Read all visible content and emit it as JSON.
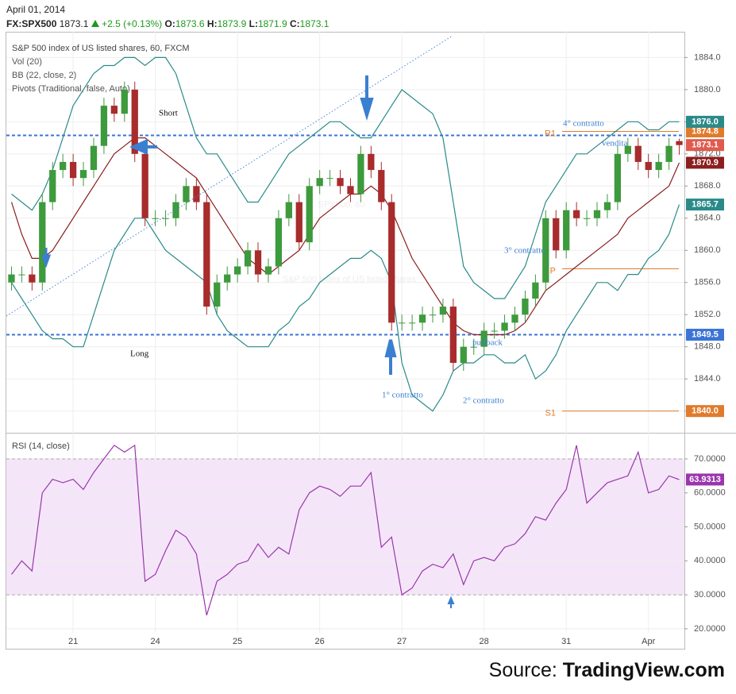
{
  "header": {
    "date": "April 01, 2014",
    "symbol": "FX:SPX500",
    "change": "+2.5 (+0.13%)",
    "ohlc_labels": [
      "O:",
      "H:",
      "L:",
      "C:"
    ]
  },
  "source": {
    "prefix": "Source:",
    "site": "TradingView.com"
  },
  "chart_data": [
    {
      "type": "candlestick",
      "title": "S&P 500 index of US listed shares, 60, FXCM",
      "indicators": [
        "Vol (20)",
        "BB (22, close, 2)",
        "Pivots (Traditional, false, Auto)"
      ],
      "watermark": "SPX500, 60",
      "watermark_subtitle": "S&P 500 index of US listed shares",
      "categories": [
        null,
        null,
        null,
        null,
        null,
        null,
        "21",
        null,
        null,
        null,
        null,
        null,
        null,
        null,
        "24",
        null,
        null,
        null,
        null,
        null,
        null,
        null,
        "25",
        null,
        null,
        null,
        null,
        null,
        null,
        null,
        "26",
        null,
        null,
        null,
        null,
        null,
        null,
        null,
        "27",
        null,
        null,
        null,
        null,
        null,
        null,
        null,
        "28",
        null,
        null,
        null,
        null,
        null,
        null,
        null,
        "31",
        null,
        null,
        null,
        null,
        null,
        null,
        null,
        "Apr",
        null,
        null,
        null
      ],
      "open": [
        1856,
        1857,
        1857,
        1856,
        1866,
        1870,
        1871,
        1869,
        1870,
        1873,
        1878,
        1877,
        1880,
        1872,
        1864,
        1864,
        1864,
        1866,
        1868,
        1866,
        1853,
        1856,
        1857,
        1858,
        1860,
        1857,
        1858,
        1864,
        1866,
        1861,
        1868,
        1869,
        1869,
        1868,
        1867,
        1872,
        1870,
        1866,
        1851,
        1851,
        1851,
        1852,
        1852,
        1853,
        1846,
        1848,
        1848,
        1850,
        1850,
        1851,
        1852,
        1854,
        1856,
        1864,
        1860,
        1865,
        1864,
        1864,
        1865,
        1866,
        1872,
        1873,
        1871,
        1870,
        1871,
        1873.6
      ],
      "high": [
        1858,
        1858,
        1858,
        1867,
        1871,
        1872,
        1872,
        1871,
        1874,
        1879,
        1879,
        1881,
        1881,
        1873,
        1865,
        1865,
        1867,
        1869,
        1869,
        1867,
        1857,
        1858,
        1859,
        1861,
        1861,
        1859,
        1865,
        1867,
        1867,
        1869,
        1870,
        1870,
        1870,
        1869,
        1873,
        1873,
        1871,
        1867,
        1852,
        1852,
        1853,
        1853,
        1854,
        1854,
        1849,
        1849,
        1851,
        1851,
        1852,
        1853,
        1855,
        1857,
        1865,
        1865,
        1866,
        1866,
        1865,
        1866,
        1867,
        1873,
        1874,
        1874,
        1872,
        1872,
        1874,
        1873.9
      ],
      "low": [
        1855,
        1856,
        1855,
        1855,
        1865,
        1869,
        1868,
        1868,
        1869,
        1872,
        1876,
        1876,
        1871,
        1863,
        1863,
        1863,
        1863,
        1865,
        1865,
        1852,
        1852,
        1855,
        1856,
        1857,
        1856,
        1856,
        1857,
        1863,
        1860,
        1860,
        1867,
        1868,
        1867,
        1866,
        1866,
        1869,
        1865,
        1850,
        1850,
        1850,
        1850,
        1851,
        1851,
        1845,
        1845,
        1847,
        1847,
        1849,
        1849,
        1850,
        1851,
        1853,
        1855,
        1859,
        1859,
        1863,
        1863,
        1863,
        1864,
        1865,
        1871,
        1870,
        1869,
        1869,
        1870,
        1871.9
      ],
      "close": [
        1857,
        1857,
        1856,
        1866,
        1870,
        1871,
        1869,
        1870,
        1873,
        1878,
        1877,
        1880,
        1872,
        1864,
        1864,
        1864,
        1866,
        1868,
        1866,
        1853,
        1856,
        1857,
        1858,
        1860,
        1857,
        1858,
        1864,
        1866,
        1861,
        1868,
        1869,
        1869,
        1868,
        1867,
        1872,
        1870,
        1866,
        1851,
        1851,
        1851,
        1852,
        1852,
        1853,
        1846,
        1848,
        1848,
        1850,
        1850,
        1851,
        1852,
        1854,
        1856,
        1864,
        1860,
        1865,
        1864,
        1864,
        1865,
        1866,
        1872,
        1873,
        1871,
        1870,
        1871,
        1873,
        1873.1
      ],
      "up_color": "#3d9a3d",
      "down_color": "#a82c2c",
      "last_color": "#e05a4e",
      "bands": [
        {
          "color": "#2a8a8a",
          "values": [
            1867,
            1866,
            1865,
            1867,
            1870,
            1874,
            1878,
            1880,
            1882,
            1883,
            1883,
            1884,
            1884,
            1883,
            1884,
            1884,
            1882,
            1878,
            1874,
            1872,
            1872,
            1870,
            1868,
            1866,
            1866,
            1868,
            1870,
            1872,
            1873,
            1874,
            1875,
            1876,
            1876,
            1875,
            1874,
            1874,
            1876,
            1878,
            1880,
            1879,
            1878,
            1877,
            1874,
            1866,
            1858,
            1856,
            1855,
            1854,
            1854,
            1856,
            1858,
            1862,
            1866,
            1868,
            1870,
            1872,
            1872,
            1873,
            1874,
            1875,
            1876,
            1876,
            1875,
            1875,
            1876,
            1876
          ],
          "label": "1876.0"
        },
        {
          "color": "#8b1e1e",
          "values": [
            1866,
            1862,
            1859,
            1859,
            1860,
            1862,
            1864,
            1866,
            1868,
            1870,
            1872,
            1873,
            1874,
            1874,
            1873,
            1872,
            1871,
            1870,
            1869,
            1867,
            1865,
            1863,
            1861,
            1859,
            1858,
            1857,
            1858,
            1859,
            1860,
            1862,
            1864,
            1865,
            1866,
            1867,
            1867,
            1868,
            1867,
            1865,
            1862,
            1859,
            1857,
            1855,
            1853,
            1851,
            1850,
            1849.5,
            1849.5,
            1849.5,
            1849.5,
            1850,
            1851,
            1853,
            1855,
            1856,
            1857,
            1858,
            1859,
            1860,
            1861,
            1862,
            1864,
            1865,
            1866,
            1867,
            1868,
            1870.9
          ],
          "label": "1870.9"
        },
        {
          "color": "#2a8a8a",
          "values": [
            1856,
            1854,
            1852,
            1850,
            1849,
            1849,
            1848,
            1848,
            1852,
            1856,
            1860,
            1862,
            1864,
            1864,
            1862,
            1860,
            1859,
            1858,
            1857,
            1856,
            1852,
            1850,
            1849,
            1848,
            1848,
            1848,
            1850,
            1851,
            1853,
            1854,
            1856,
            1857,
            1858,
            1859,
            1859,
            1860,
            1859,
            1856,
            1846,
            1842,
            1841,
            1840,
            1842,
            1845,
            1846,
            1846,
            1847,
            1847,
            1846,
            1846,
            1847,
            1844,
            1845,
            1847,
            1850,
            1852,
            1854,
            1856,
            1856,
            1855,
            1857,
            1857,
            1859,
            1860,
            1862,
            1865.7
          ],
          "label": "1865.7"
        }
      ],
      "levels": [
        {
          "value": 1874.3
        },
        {
          "value": 1849.5,
          "label": "1849.5"
        }
      ],
      "level_color": "#3b74d6",
      "pivots": [
        {
          "name": "R1",
          "value": 1874.8,
          "label": "1874.8"
        },
        {
          "name": "P",
          "value": 1857.7
        },
        {
          "name": "S1",
          "value": 1840,
          "label": "1840.0"
        }
      ],
      "pivot_color": "#e07b2b",
      "annotations": [
        "Short",
        "Long",
        "1° contratto",
        "2° contratto",
        "3° contratto",
        "4° contratto",
        "vendita",
        "pullback"
      ],
      "ylim": [
        1837.3,
        1887.2
      ],
      "yticks": [
        {
          "value": 1840,
          "label": "1840.0"
        },
        {
          "value": 1844,
          "label": "1844.0"
        },
        {
          "value": 1848,
          "label": "1848.0"
        },
        {
          "value": 1852,
          "label": "1852.0"
        },
        {
          "value": 1856,
          "label": "1856.0"
        },
        {
          "value": 1860,
          "label": "1860.0"
        },
        {
          "value": 1864,
          "label": "1864.0"
        },
        {
          "value": 1868,
          "label": "1868.0"
        },
        {
          "value": 1872,
          "label": "1872.0"
        },
        {
          "value": 1876,
          "label": "1876.0"
        },
        {
          "value": 1880,
          "label": "1880.0"
        },
        {
          "value": 1884,
          "label": "1884.0"
        }
      ],
      "grid": true
    },
    {
      "type": "line",
      "title": "RSI (14, close)",
      "color": "#9b35ad",
      "values": [
        36,
        40,
        37,
        60,
        64,
        63,
        64,
        61,
        66,
        70,
        74,
        72,
        74,
        34,
        36,
        43,
        49,
        47,
        42,
        24,
        34,
        36,
        39,
        40,
        45,
        41,
        44,
        42,
        55,
        60,
        62,
        61,
        59,
        62,
        62,
        66,
        44,
        47,
        30,
        32,
        37,
        39,
        38,
        42,
        33,
        40,
        41,
        40,
        44,
        45,
        48,
        53,
        52,
        57,
        61,
        74,
        57,
        60,
        63,
        64,
        65,
        72,
        60,
        61,
        65,
        63.9313
      ],
      "band": [
        30,
        70
      ],
      "ylim": [
        18.8,
        77.7
      ],
      "yticks": [
        {
          "value": 20,
          "label": "20.0000"
        },
        {
          "value": 30,
          "label": "30.0000"
        },
        {
          "value": 40,
          "label": "40.0000"
        },
        {
          "value": 50,
          "label": "50.0000"
        },
        {
          "value": 60,
          "label": "60.0000"
        },
        {
          "value": 70,
          "label": "70.0000"
        }
      ],
      "grid": true
    }
  ]
}
